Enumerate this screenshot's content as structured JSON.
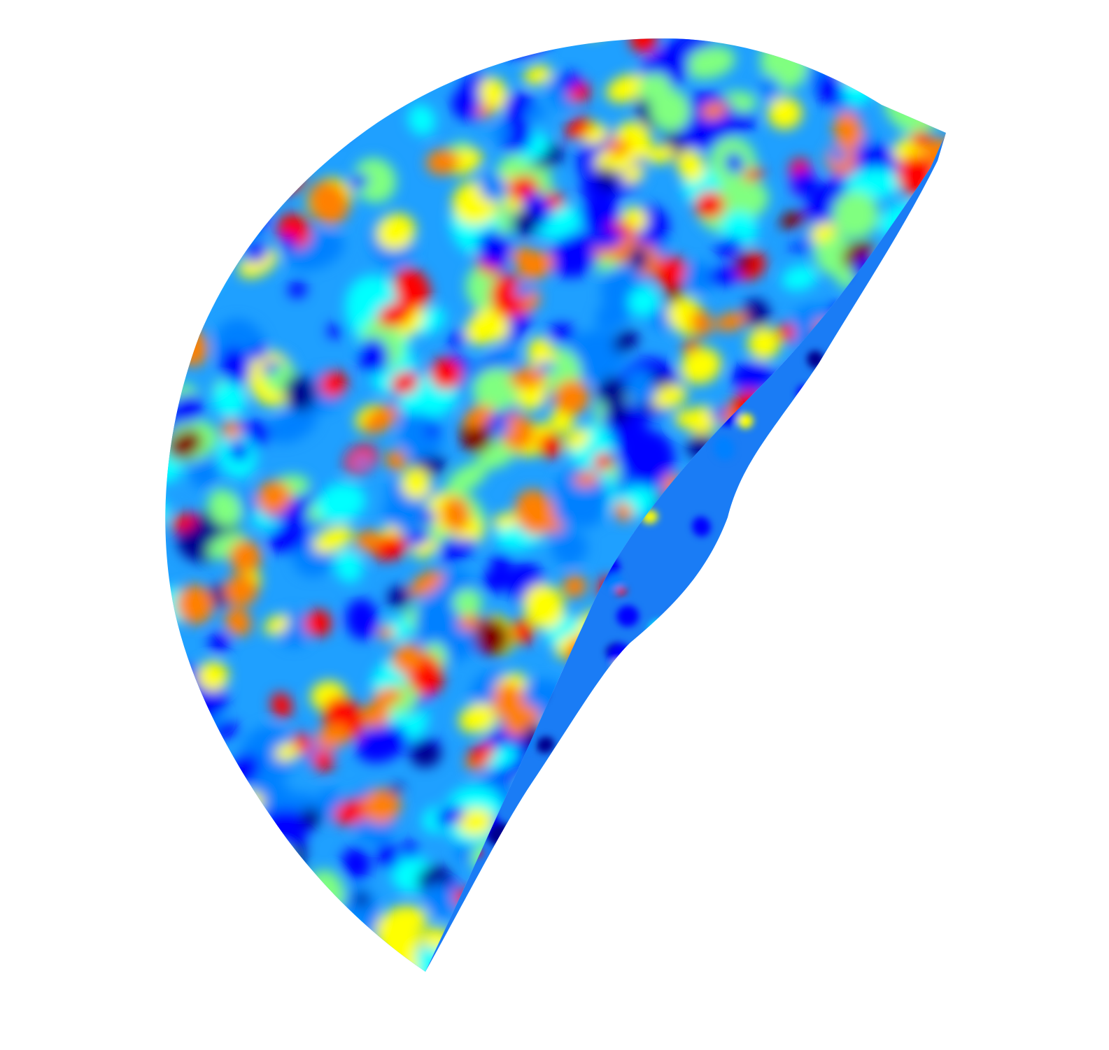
{
  "figure": {
    "kind": "3d-surface-render",
    "colormap": "jet",
    "colors": {
      "background": "#ffffff",
      "colormap_stops": [
        "#00008f",
        "#0000ff",
        "#0080ff",
        "#00ffff",
        "#80ff80",
        "#ffff00",
        "#ff8000",
        "#ff0000",
        "#800000"
      ]
    },
    "legend": null,
    "axes_visible": false
  }
}
